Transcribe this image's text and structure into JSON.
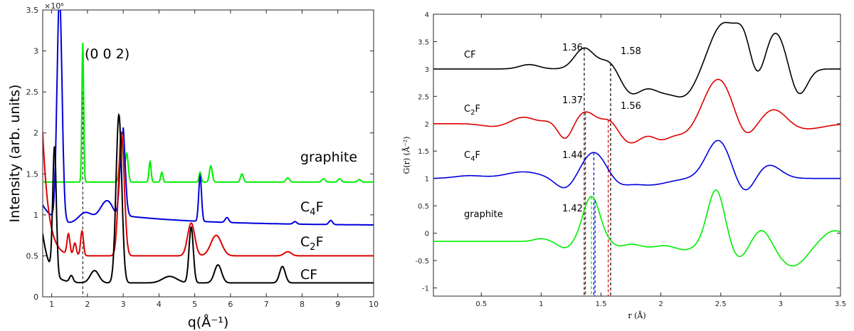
{
  "chart_data": [
    {
      "type": "line",
      "ylabel": "Intensity  (arb. units)",
      "xlabel": "q(Å⁻¹)",
      "y_scale_label": "×10⁶",
      "xlim": [
        0.75,
        10
      ],
      "ylim": [
        0,
        3.5
      ],
      "xticks": [
        "1",
        "2",
        "3",
        "4",
        "5",
        "6",
        "7",
        "8",
        "9",
        "10"
      ],
      "yticks": [
        "0",
        "0.5",
        "1",
        "1.5",
        "2",
        "2.5",
        "3",
        "3.5"
      ],
      "grid": false,
      "reference_line_q": 1.87,
      "annotation": "(0 0 2)",
      "series": [
        {
          "name": "graphite",
          "color": "#00ee00",
          "label_text": "graphite",
          "baseline": 1.4,
          "peaks": [
            [
              1.87,
              1.7,
              0.025
            ],
            [
              2.95,
              0.45,
              0.05
            ],
            [
              3.1,
              0.35,
              0.04
            ],
            [
              3.75,
              0.25,
              0.03
            ],
            [
              4.08,
              0.12,
              0.03
            ],
            [
              5.15,
              0.12,
              0.03
            ],
            [
              5.45,
              0.2,
              0.04
            ],
            [
              6.32,
              0.1,
              0.04
            ],
            [
              7.6,
              0.05,
              0.05
            ],
            [
              8.6,
              0.04,
              0.05
            ],
            [
              9.05,
              0.04,
              0.05
            ],
            [
              9.6,
              0.03,
              0.05
            ]
          ]
        },
        {
          "name": "C4F",
          "color": "#0000dd",
          "label_text": "C",
          "label_sub": "4",
          "label_tail": "F",
          "baseline": 0.87,
          "peaks": [
            [
              1.22,
              2.75,
              0.07
            ],
            [
              1.95,
              0.15,
              0.2
            ],
            [
              2.55,
              0.3,
              0.2
            ],
            [
              2.98,
              1.1,
              0.07
            ],
            [
              5.15,
              0.55,
              0.04
            ],
            [
              5.9,
              0.06,
              0.05
            ],
            [
              7.8,
              0.03,
              0.05
            ],
            [
              8.8,
              0.05,
              0.05
            ]
          ]
        },
        {
          "name": "C2F",
          "color": "#dd0000",
          "label_text": "C",
          "label_sub": "2",
          "label_tail": "F",
          "baseline": 0.5,
          "peaks": [
            [
              1.47,
              0.25,
              0.04
            ],
            [
              1.65,
              0.15,
              0.04
            ],
            [
              1.85,
              0.3,
              0.04
            ],
            [
              2.95,
              1.5,
              0.08
            ],
            [
              4.9,
              0.4,
              0.1
            ],
            [
              5.6,
              0.25,
              0.15
            ],
            [
              7.6,
              0.05,
              0.1
            ]
          ]
        },
        {
          "name": "CF",
          "color": "#000000",
          "label_text": "CF",
          "baseline": 0.17,
          "peaks": [
            [
              1.08,
              1.55,
              0.05
            ],
            [
              1.55,
              0.08,
              0.05
            ],
            [
              2.2,
              0.15,
              0.12
            ],
            [
              2.88,
              2.05,
              0.08
            ],
            [
              4.3,
              0.08,
              0.2
            ],
            [
              4.9,
              0.68,
              0.06
            ],
            [
              5.65,
              0.22,
              0.1
            ],
            [
              7.45,
              0.2,
              0.08
            ]
          ]
        }
      ]
    },
    {
      "type": "line",
      "ylabel": "G(r) (Å⁻²)",
      "xlabel": "r (Å)",
      "xlim": [
        0.1,
        3.5
      ],
      "ylim": [
        -1.15,
        4
      ],
      "xticks": [
        "0.5",
        "1",
        "1.5",
        "2",
        "2.5",
        "3",
        "3.5"
      ],
      "yticks": [
        "-1",
        "-0.5",
        "0",
        "0.5",
        "1",
        "1.5",
        "2",
        "2.5",
        "3",
        "3.5",
        "4"
      ],
      "grid": false,
      "series": [
        {
          "name": "CF",
          "color": "#000000",
          "label_text": "CF",
          "offset": 3.0,
          "bumps": [
            [
              0.9,
              0.08,
              0.08
            ],
            [
              1.36,
              0.38,
              0.08
            ],
            [
              1.58,
              0.2,
              0.08
            ],
            [
              1.75,
              -0.45,
              0.1
            ],
            [
              2.0,
              -0.35,
              0.1
            ],
            [
              2.2,
              -0.45,
              0.1
            ],
            [
              2.52,
              0.82,
              0.11
            ],
            [
              2.7,
              0.6,
              0.07
            ],
            [
              2.8,
              -0.45,
              0.07
            ],
            [
              2.95,
              0.7,
              0.09
            ],
            [
              3.15,
              -0.5,
              0.07
            ]
          ],
          "markers": [
            {
              "r": 1.36,
              "label": "1.36",
              "color": "#000000"
            },
            {
              "r": 1.58,
              "label": "1.58",
              "color": "#000000"
            }
          ]
        },
        {
          "name": "C2F",
          "color": "#dd0000",
          "label_text": "C",
          "label_sub": "2",
          "label_tail": "F",
          "offset": 2.0,
          "bumps": [
            [
              0.6,
              -0.05,
              0.1
            ],
            [
              0.85,
              0.12,
              0.09
            ],
            [
              1.08,
              0.05,
              0.07
            ],
            [
              1.2,
              -0.3,
              0.06
            ],
            [
              1.37,
              0.22,
              0.08
            ],
            [
              1.58,
              0.12,
              0.06
            ],
            [
              1.75,
              -0.35,
              0.1
            ],
            [
              2.0,
              -0.25,
              0.08
            ],
            [
              2.2,
              -0.2,
              0.1
            ],
            [
              2.48,
              0.82,
              0.12
            ],
            [
              2.7,
              -0.3,
              0.08
            ],
            [
              2.95,
              0.28,
              0.1
            ],
            [
              3.2,
              -0.1,
              0.15
            ]
          ],
          "markers": [
            {
              "r": 1.37,
              "label": "1.37",
              "color": "#dd0000"
            },
            {
              "r": 1.56,
              "label": "1.56",
              "color": "#dd0000"
            }
          ]
        },
        {
          "name": "C4F",
          "color": "#0000dd",
          "label_text": "C",
          "label_sub": "4",
          "label_tail": "F",
          "offset": 1.0,
          "bumps": [
            [
              0.4,
              0.05,
              0.12
            ],
            [
              0.85,
              0.12,
              0.15
            ],
            [
              1.2,
              -0.2,
              0.08
            ],
            [
              1.44,
              0.48,
              0.1
            ],
            [
              1.65,
              -0.1,
              0.08
            ],
            [
              1.9,
              -0.12,
              0.15
            ],
            [
              2.48,
              0.7,
              0.1
            ],
            [
              2.7,
              -0.3,
              0.08
            ],
            [
              2.9,
              0.25,
              0.1
            ]
          ],
          "markers": [
            {
              "r": 1.44,
              "label": "1.44",
              "color": "#0000dd"
            }
          ]
        },
        {
          "name": "graphite",
          "color": "#00ee00",
          "label_text": "graphite",
          "offset": -0.15,
          "bumps": [
            [
              1.0,
              0.05,
              0.06
            ],
            [
              1.2,
              -0.12,
              0.06
            ],
            [
              1.42,
              0.82,
              0.07
            ],
            [
              1.65,
              -0.08,
              0.06
            ],
            [
              1.9,
              -0.1,
              0.1
            ],
            [
              2.2,
              -0.15,
              0.1
            ],
            [
              2.46,
              0.95,
              0.07
            ],
            [
              2.65,
              -0.3,
              0.07
            ],
            [
              2.85,
              0.25,
              0.07
            ],
            [
              3.1,
              -0.45,
              0.12
            ],
            [
              3.45,
              0.2,
              0.1
            ]
          ],
          "markers": [
            {
              "r": 1.42,
              "label": "1.42",
              "color": "#0000dd"
            }
          ]
        }
      ]
    }
  ]
}
